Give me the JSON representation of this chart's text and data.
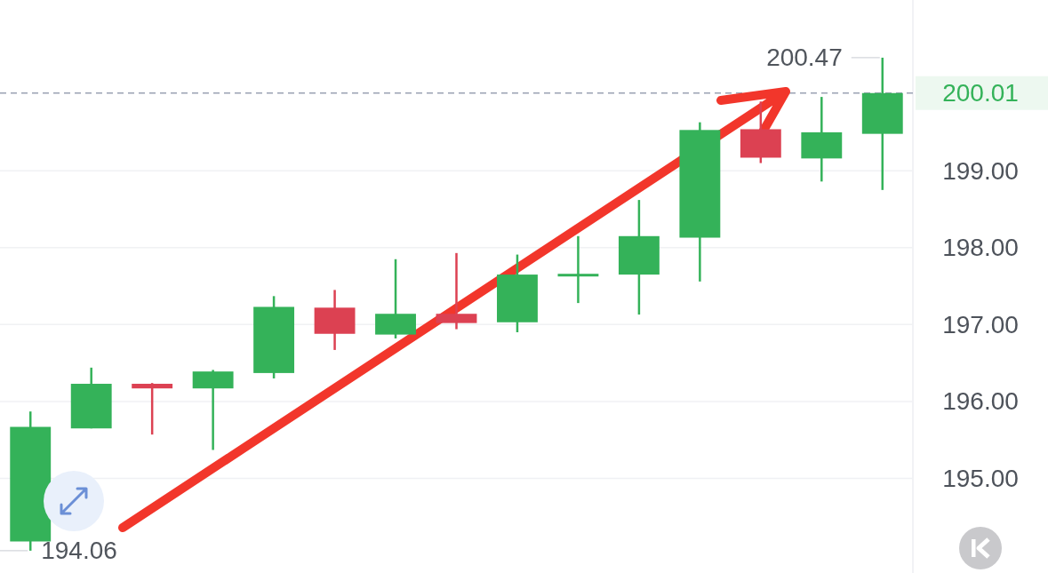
{
  "chart_data": {
    "type": "candlestick",
    "categories": [
      null,
      null,
      null,
      null,
      null,
      null,
      null,
      null,
      null,
      null,
      null,
      null,
      null,
      null,
      null
    ],
    "ohlc": [
      [
        194.18,
        195.87,
        194.06,
        195.67
      ],
      [
        195.65,
        196.44,
        195.65,
        196.23
      ],
      [
        196.23,
        196.24,
        195.57,
        196.17
      ],
      [
        196.17,
        196.41,
        195.37,
        196.39
      ],
      [
        196.37,
        197.37,
        196.3,
        197.23
      ],
      [
        197.22,
        197.45,
        196.67,
        196.88
      ],
      [
        196.87,
        197.85,
        196.82,
        197.14
      ],
      [
        197.14,
        197.93,
        196.94,
        197.02
      ],
      [
        197.03,
        197.91,
        196.9,
        197.65
      ],
      [
        197.65,
        198.15,
        197.28,
        197.66
      ],
      [
        197.65,
        198.62,
        197.13,
        198.15
      ],
      [
        198.13,
        199.63,
        197.56,
        199.53
      ],
      [
        199.54,
        199.9,
        199.1,
        199.17
      ],
      [
        199.16,
        199.96,
        198.86,
        199.5
      ],
      [
        199.48,
        200.47,
        198.75,
        200.01
      ]
    ],
    "colors": [
      "#34b259",
      "#34b259",
      "#dc4152",
      "#34b259",
      "#34b259",
      "#dc4152",
      "#34b259",
      "#dc4152",
      "#34b259",
      "#34b259",
      "#34b259",
      "#34b259",
      "#dc4152",
      "#34b259",
      "#34b259"
    ],
    "ylim": [
      193.77,
      201.22
    ],
    "yticks": [
      {
        "value": 195,
        "label": "195.00"
      },
      {
        "value": 196,
        "label": "196.00"
      },
      {
        "value": 197,
        "label": "197.00"
      },
      {
        "value": 198,
        "label": "198.00"
      },
      {
        "value": 199,
        "label": "199.00"
      }
    ],
    "grid": "y",
    "ref_lines": [
      {
        "axis": "y",
        "value": 200.01,
        "label": "200.01",
        "color": "#9aa2b3",
        "line_style": "dashed"
      }
    ],
    "annotations": [
      "200.47",
      "194.06"
    ]
  }
}
